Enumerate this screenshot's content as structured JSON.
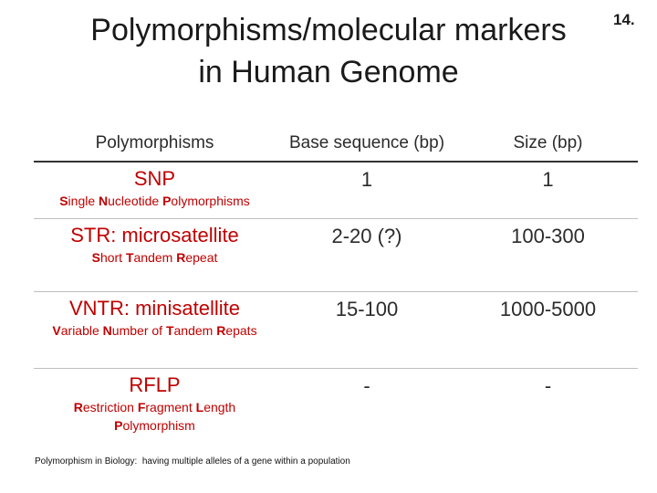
{
  "title": {
    "line1": "Polymorphisms/molecular markers",
    "line2": "in Human Genome"
  },
  "slide_number": "14.",
  "table": {
    "headers": [
      "Polymorphisms",
      "Base sequence (bp)",
      "Size (bp)"
    ],
    "rows": [
      {
        "name": "SNP",
        "full_name_parts": [
          {
            "t": "S",
            "b": true
          },
          {
            "t": "ingle ",
            "b": false
          },
          {
            "t": "N",
            "b": true
          },
          {
            "t": "ucleotide ",
            "b": false
          },
          {
            "t": "P",
            "b": true
          },
          {
            "t": "olymorphisms",
            "b": false
          }
        ],
        "base_sequence": "1",
        "size": "1"
      },
      {
        "name": "STR: microsatellite",
        "full_name_parts": [
          {
            "t": "S",
            "b": true
          },
          {
            "t": "hort ",
            "b": false
          },
          {
            "t": "T",
            "b": true
          },
          {
            "t": "andem ",
            "b": false
          },
          {
            "t": "R",
            "b": true
          },
          {
            "t": "epeat",
            "b": false
          }
        ],
        "base_sequence": "2-20 (?)",
        "size": "100-300"
      },
      {
        "name": "VNTR: minisatellite",
        "full_name_parts": [
          {
            "t": "V",
            "b": true
          },
          {
            "t": "ariable ",
            "b": false
          },
          {
            "t": "N",
            "b": true
          },
          {
            "t": "umber of ",
            "b": false
          },
          {
            "t": "T",
            "b": true
          },
          {
            "t": "andem ",
            "b": false
          },
          {
            "t": "R",
            "b": true
          },
          {
            "t": "epats",
            "b": false
          }
        ],
        "base_sequence": "15-100",
        "size": "1000-5000"
      },
      {
        "name": "RFLP",
        "full_name_parts": [
          {
            "t": "R",
            "b": true
          },
          {
            "t": "estriction ",
            "b": false
          },
          {
            "t": "F",
            "b": true
          },
          {
            "t": "ragment ",
            "b": false
          },
          {
            "t": "L",
            "b": true
          },
          {
            "t": "ength ",
            "b": false
          },
          {
            "t": "P",
            "b": true
          },
          {
            "t": "olymorphism",
            "b": false
          }
        ],
        "base_sequence": "-",
        "size": "-"
      }
    ]
  },
  "footnote": {
    "label": "Polymorphism in Biology:",
    "text": "having multiple alleles of a gene within a population"
  },
  "colors": {
    "marker_name": "#c00000",
    "text": "#2b2b2b"
  }
}
